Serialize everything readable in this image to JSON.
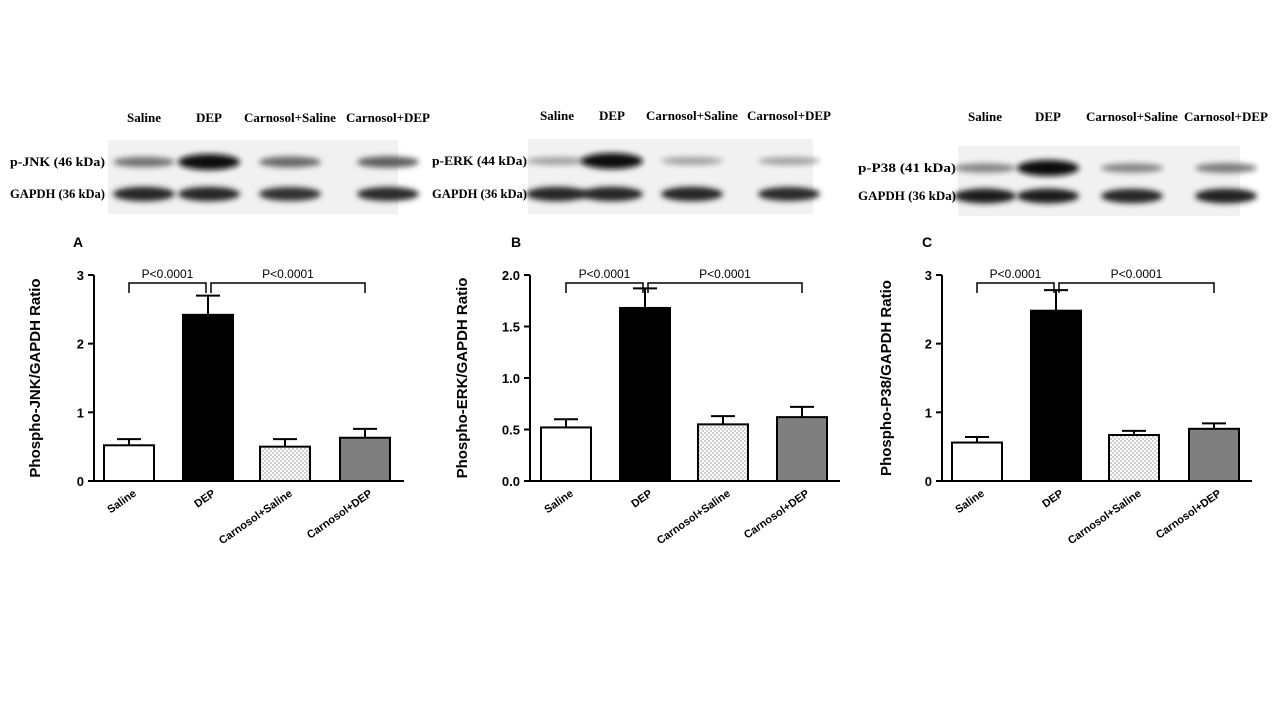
{
  "blots": [
    {
      "lanes": [
        "Saline",
        "DEP",
        "Carnosol+Saline",
        "Carnosol+DEP"
      ],
      "rows": [
        {
          "label": "p-JNK  (46 kDa)",
          "intensity": [
            0.45,
            1.0,
            0.5,
            0.55
          ]
        },
        {
          "label": "GAPDH  (36 kDa)",
          "intensity": [
            0.85,
            0.85,
            0.8,
            0.82
          ]
        }
      ]
    },
    {
      "lanes": [
        "Saline",
        "DEP",
        "Carnosol+Saline",
        "Carnosol+DEP"
      ],
      "rows": [
        {
          "label": "p-ERK  (44 kDa)",
          "intensity": [
            0.2,
            1.0,
            0.2,
            0.2
          ]
        },
        {
          "label": "GAPDH  (36 kDa)",
          "intensity": [
            0.85,
            0.85,
            0.85,
            0.82
          ]
        }
      ]
    },
    {
      "lanes": [
        "Saline",
        "DEP",
        "Carnosol+Saline",
        "Carnosol+DEP"
      ],
      "rows": [
        {
          "label": "p-P38  (41 kDa)",
          "intensity": [
            0.35,
            1.0,
            0.35,
            0.4
          ]
        },
        {
          "label": "GAPDH  (36 kDa)",
          "intensity": [
            0.9,
            0.9,
            0.85,
            0.88
          ]
        }
      ]
    }
  ],
  "chart_data": [
    {
      "type": "bar",
      "panel": "A",
      "categories": [
        "Saline",
        "DEP",
        "Carnosol+Saline",
        "Carnosol+DEP"
      ],
      "values": [
        0.52,
        2.42,
        0.5,
        0.63
      ],
      "errors": [
        0.09,
        0.28,
        0.11,
        0.13
      ],
      "ylabel": "Phospho-JNK/GAPDH Ratio",
      "ylim": [
        0,
        3
      ],
      "yticks": [
        0,
        1,
        2,
        3
      ],
      "tick_decimals": 0,
      "significance": [
        {
          "from": 0,
          "to": 1,
          "label": "P<0.0001"
        },
        {
          "from": 1,
          "to": 3,
          "label": "P<0.0001"
        }
      ]
    },
    {
      "type": "bar",
      "panel": "B",
      "categories": [
        "Saline",
        "DEP",
        "Carnosol+Saline",
        "Carnosol+DEP"
      ],
      "values": [
        0.52,
        1.68,
        0.55,
        0.62
      ],
      "errors": [
        0.08,
        0.19,
        0.08,
        0.1
      ],
      "ylabel": "Phospho-ERK/GAPDH Ratio",
      "ylim": [
        0,
        2.0
      ],
      "yticks": [
        0,
        0.5,
        1.0,
        1.5,
        2.0
      ],
      "tick_decimals": 1,
      "significance": [
        {
          "from": 0,
          "to": 1,
          "label": "P<0.0001"
        },
        {
          "from": 1,
          "to": 3,
          "label": "P<0.0001"
        }
      ]
    },
    {
      "type": "bar",
      "panel": "C",
      "categories": [
        "Saline",
        "DEP",
        "Carnosol+Saline",
        "Carnosol+DEP"
      ],
      "values": [
        0.56,
        2.48,
        0.67,
        0.76
      ],
      "errors": [
        0.08,
        0.3,
        0.06,
        0.08
      ],
      "ylabel": "Phospho-P38/GAPDH Ratio",
      "ylim": [
        0,
        3
      ],
      "yticks": [
        0,
        1,
        2,
        3
      ],
      "tick_decimals": 0,
      "significance": [
        {
          "from": 0,
          "to": 1,
          "label": "P<0.0001"
        },
        {
          "from": 1,
          "to": 3,
          "label": "P<0.0001"
        }
      ]
    }
  ],
  "bar_styles": [
    {
      "fill": "#ffffff",
      "pattern": "none"
    },
    {
      "fill": "#000000",
      "pattern": "none"
    },
    {
      "fill": "#ffffff",
      "pattern": "dots"
    },
    {
      "fill": "#7f7f7f",
      "pattern": "none"
    }
  ]
}
